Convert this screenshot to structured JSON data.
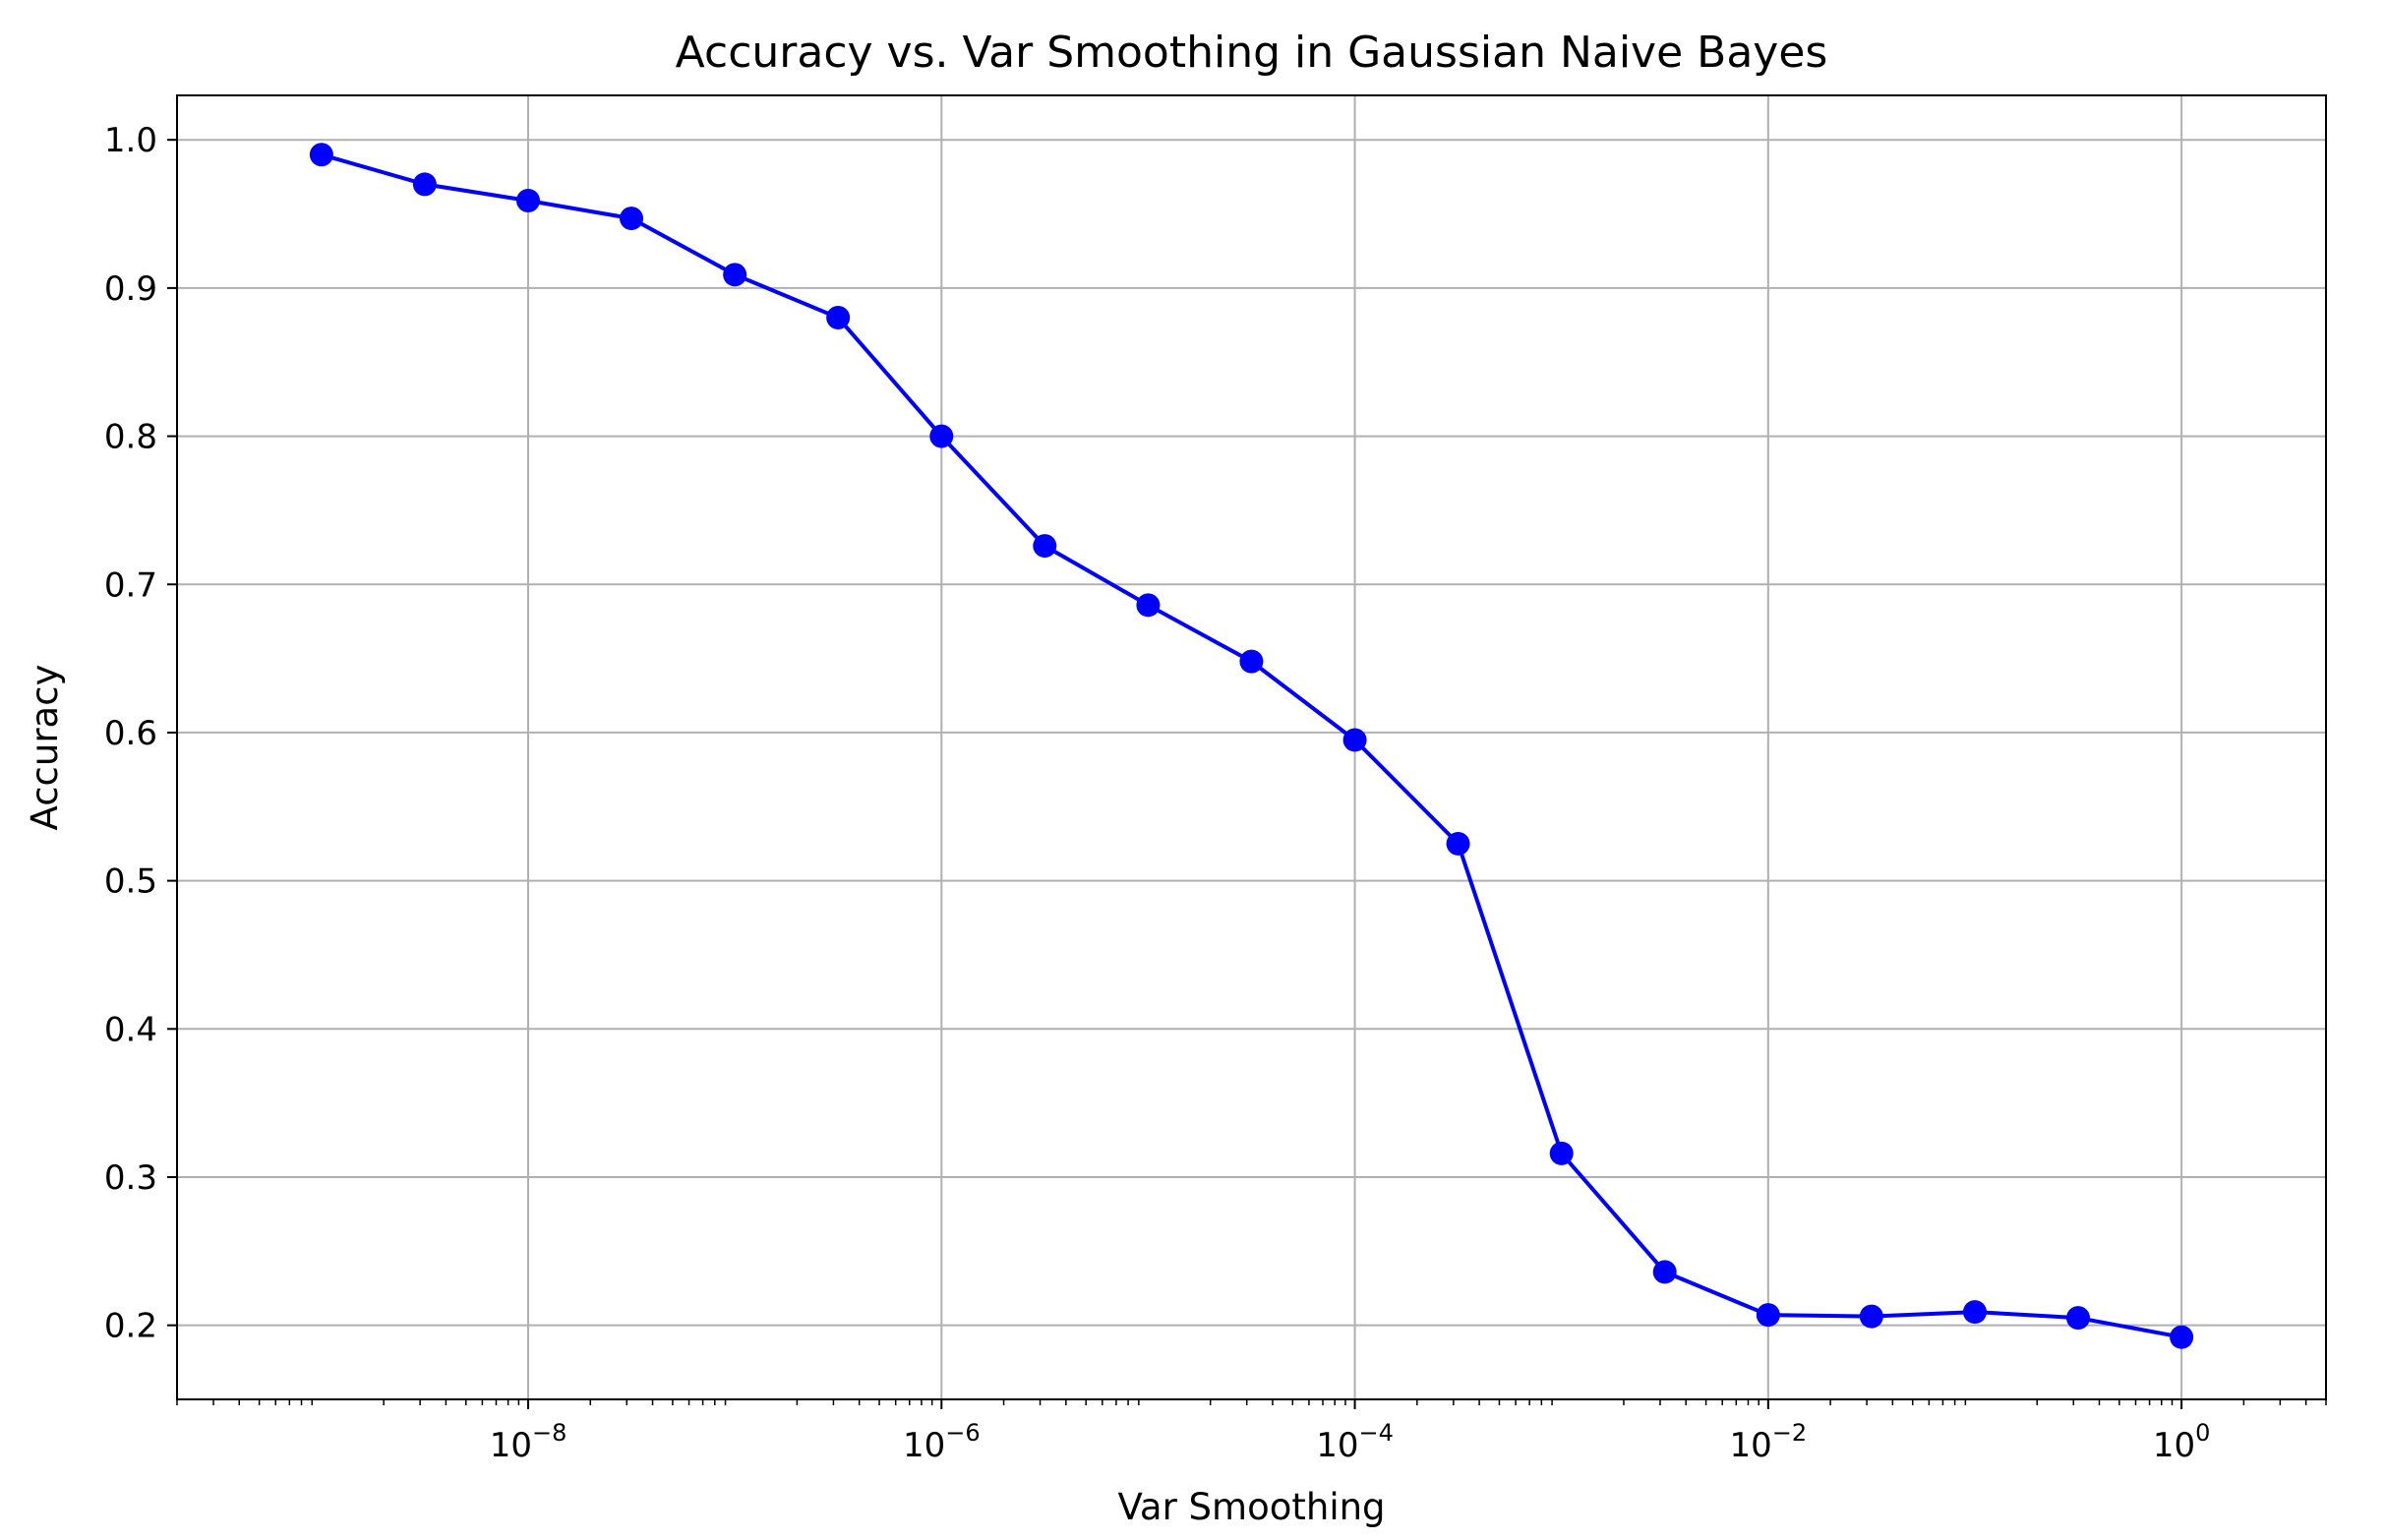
{
  "chart_data": {
    "type": "line",
    "title": "Accuracy vs. Var Smoothing in Gaussian Naive Bayes",
    "xlabel": "Var Smoothing",
    "ylabel": "Accuracy",
    "x_scale": "log",
    "xlim": [
      2e-10,
      5
    ],
    "ylim": [
      0.15,
      1.03
    ],
    "grid": true,
    "line_color": "#0000ff",
    "marker": "circle",
    "x_ticks": [
      {
        "value": 1e-08,
        "base": "10",
        "exponent": "−8"
      },
      {
        "value": 1e-06,
        "base": "10",
        "exponent": "−6"
      },
      {
        "value": 0.0001,
        "base": "10",
        "exponent": "−4"
      },
      {
        "value": 0.01,
        "base": "10",
        "exponent": "−2"
      },
      {
        "value": 1,
        "base": "10",
        "exponent": "0"
      }
    ],
    "y_ticks": [
      {
        "value": 0.2,
        "label": "0.2"
      },
      {
        "value": 0.3,
        "label": "0.3"
      },
      {
        "value": 0.4,
        "label": "0.4"
      },
      {
        "value": 0.5,
        "label": "0.5"
      },
      {
        "value": 0.6,
        "label": "0.6"
      },
      {
        "value": 0.7,
        "label": "0.7"
      },
      {
        "value": 0.8,
        "label": "0.8"
      },
      {
        "value": 0.9,
        "label": "0.9"
      },
      {
        "value": 1.0,
        "label": "1.0"
      }
    ],
    "x": [
      1e-09,
      3.16e-09,
      1e-08,
      3.16e-08,
      1e-07,
      3.16e-07,
      1e-06,
      3.16e-06,
      1e-05,
      3.16e-05,
      0.0001,
      0.000316,
      0.001,
      0.00316,
      0.01,
      0.0316,
      0.1,
      0.316,
      1
    ],
    "series": [
      {
        "values": [
          0.99,
          0.97,
          0.959,
          0.947,
          0.909,
          0.88,
          0.8,
          0.726,
          0.686,
          0.648,
          0.595,
          0.525,
          0.316,
          0.236,
          0.207,
          0.206,
          0.209,
          0.205,
          0.192
        ]
      }
    ]
  }
}
